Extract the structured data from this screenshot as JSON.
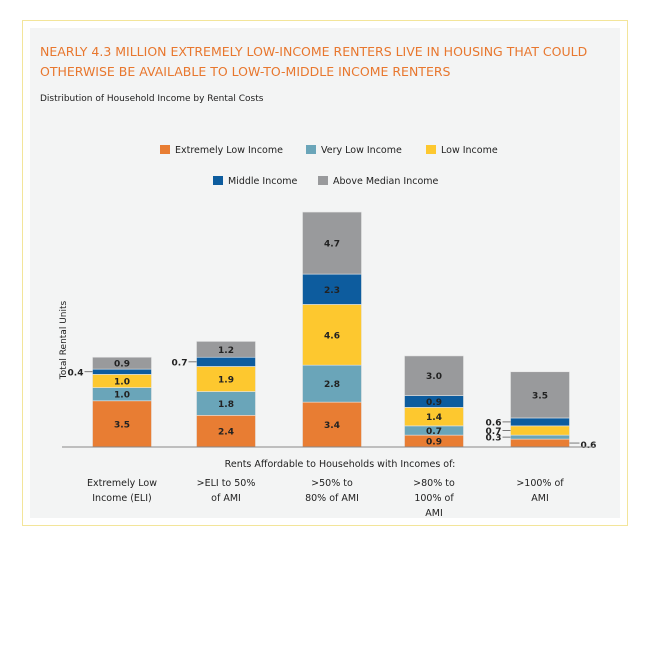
{
  "chart_data": {
    "type": "bar",
    "stacked": true,
    "title": "NEARLY 4.3 MILLION EXTREMELY LOW-INCOME RENTERS LIVE IN HOUSING THAT COULD OTHERWISE BE AVAILABLE TO LOW-TO-MIDDLE INCOME RENTERS",
    "subtitle": "Distribution of Household Income by Rental Costs",
    "xlabel": "Rents Affordable to Households with Incomes of:",
    "ylabel": "Total Rental Units",
    "categories": [
      "Extremely Low Income (ELI)",
      ">ELI to 50% of AMI",
      ">50% to 80% of AMI",
      ">80% to 100% of AMI",
      ">100% of AMI"
    ],
    "category_lines": [
      [
        "Extremely Low",
        "Income (ELI)"
      ],
      [
        ">ELI to 50%",
        "of AMI"
      ],
      [
        ">50% to",
        "80% of AMI"
      ],
      [
        ">80% to",
        "100% of",
        "AMI"
      ],
      [
        ">100% of",
        "AMI"
      ]
    ],
    "legend_placement": "top",
    "grid": false,
    "series": [
      {
        "name": "Extremely Low Income",
        "color": "#e87d33",
        "values": [
          3.5,
          2.4,
          3.4,
          0.9,
          0.6
        ]
      },
      {
        "name": "Very Low Income",
        "color": "#6aa5b9",
        "values": [
          1.0,
          1.8,
          2.8,
          0.7,
          0.3
        ]
      },
      {
        "name": "Low Income",
        "color": "#fdc82f",
        "values": [
          1.0,
          1.9,
          4.6,
          1.4,
          0.7
        ]
      },
      {
        "name": "Middle Income",
        "color": "#0d5c9e",
        "values": [
          0.4,
          0.7,
          2.3,
          0.9,
          0.6
        ]
      },
      {
        "name": "Above Median Income",
        "color": "#999a9c",
        "values": [
          0.9,
          1.2,
          4.7,
          3.0,
          3.5
        ]
      }
    ],
    "title_color": "#e8772e"
  }
}
